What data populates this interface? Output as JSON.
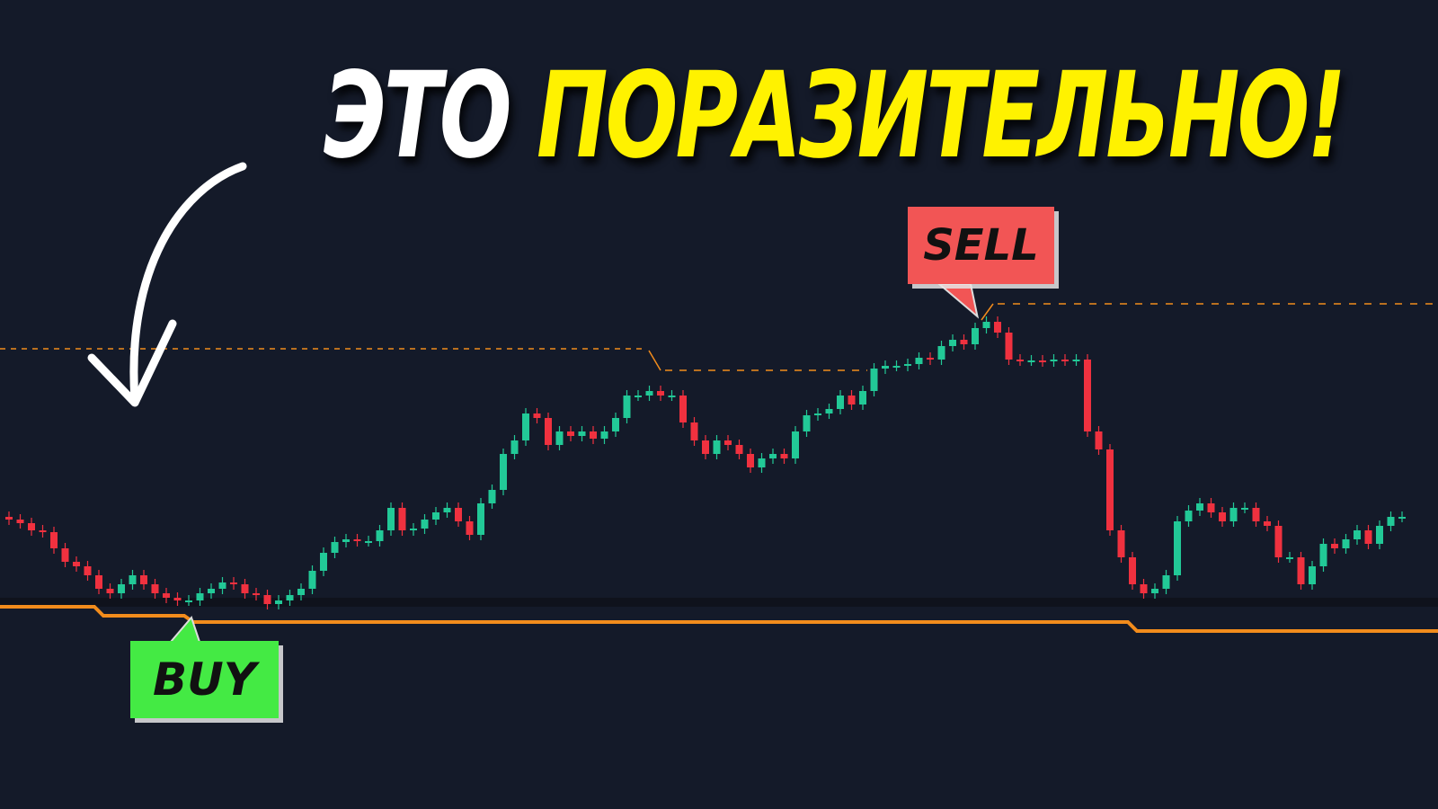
{
  "headline": {
    "part1": "ЭТО",
    "part2": "ПОРАЗИТЕЛЬНО!",
    "part1_color": "#ffffff",
    "part2_color": "#fff200"
  },
  "signals": {
    "buy": "BUY",
    "sell": "SELL",
    "buy_color": "#44ea44",
    "sell_color": "#f25555"
  },
  "colors": {
    "background": "#141a29",
    "up": "#22c997",
    "down": "#f0313f",
    "level": "#f28c1c"
  },
  "chart_data": {
    "type": "candlestick",
    "axes_visible": false,
    "grid": false,
    "title": "",
    "closes": [
      422,
      418,
      410,
      408,
      390,
      375,
      370,
      360,
      345,
      340,
      350,
      360,
      350,
      340,
      335,
      332,
      332,
      340,
      345,
      352,
      350,
      340,
      338,
      328,
      332,
      338,
      345,
      365,
      385,
      397,
      400,
      398,
      398,
      410,
      435,
      410,
      412,
      422,
      430,
      435,
      420,
      405,
      440,
      455,
      495,
      510,
      540,
      535,
      505,
      520,
      515,
      520,
      512,
      520,
      535,
      560,
      560,
      565,
      560,
      560,
      530,
      510,
      495,
      510,
      505,
      495,
      480,
      490,
      495,
      490,
      520,
      538,
      540,
      545,
      560,
      550,
      565,
      590,
      593,
      593,
      595,
      602,
      600,
      615,
      622,
      617,
      635,
      642,
      630,
      600,
      599,
      599,
      598,
      600,
      599,
      600,
      520,
      500,
      410,
      380,
      350,
      340,
      345,
      360,
      420,
      432,
      440,
      430,
      420,
      435,
      435,
      420,
      415,
      380,
      380,
      350,
      370,
      395,
      390,
      400,
      410,
      395,
      415,
      425,
      425
    ],
    "open_first": 425,
    "support_levels": [
      325,
      315,
      308,
      298
    ],
    "resistance_levels": [
      612,
      588,
      662
    ],
    "buy_signal_index": 16,
    "sell_signal_index": 87
  }
}
